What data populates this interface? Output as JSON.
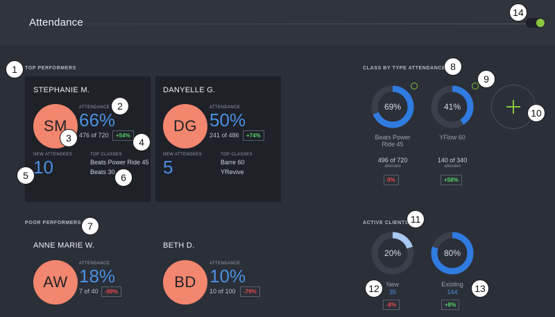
{
  "header": {
    "title": "Attendance"
  },
  "toggle": {
    "state": "on",
    "color": "#8cc63f"
  },
  "markers": [
    "1",
    "2",
    "3",
    "4",
    "5",
    "6",
    "7",
    "8",
    "9",
    "10",
    "11",
    "12",
    "13",
    "14"
  ],
  "top_performers": {
    "label": "TOP PERFORMERS",
    "cards": [
      {
        "name": "STEPHANIE M.",
        "initials": "SM",
        "attendance_label": "ATTENDANCE",
        "percent": "66%",
        "fraction": "476 of 720",
        "change": "+54%",
        "new_label": "NEW ATTENDEES",
        "new_count": "10",
        "classes_label": "TOP CLASSES",
        "classes": [
          "Beats Power Ride 45",
          "Beats 30"
        ]
      },
      {
        "name": "DANYELLE G.",
        "initials": "DG",
        "attendance_label": "ATTENDANCE",
        "percent": "50%",
        "fraction": "241 of 486",
        "change": "+74%",
        "new_label": "NEW ATTENDEES",
        "new_count": "5",
        "classes_label": "TOP CLASSES",
        "classes": [
          "Barre 60",
          "YRevive"
        ]
      }
    ]
  },
  "poor_performers": {
    "label": "POOR PERFORMERS",
    "cards": [
      {
        "name": "ANNE MARIE W.",
        "initials": "AW",
        "attendance_label": "ATTENDANCE",
        "percent": "18%",
        "fraction": "7 of 40",
        "change": "-99%"
      },
      {
        "name": "BETH D.",
        "initials": "BD",
        "attendance_label": "ATTENDANCE",
        "percent": "10%",
        "fraction": "10 of 100",
        "change": "-79%"
      }
    ]
  },
  "class_by_type": {
    "label": "CLASS BY TYPE ATTENDANCE",
    "items": [
      {
        "percent_label": "69%",
        "percent": 69,
        "name": "Beats Power Ride 45",
        "stat": "496 of 720",
        "sub": "attended",
        "change": "0%",
        "change_type": "neg"
      },
      {
        "percent_label": "41%",
        "percent": 41,
        "name": "YFlow 60",
        "stat": "140 of 340",
        "sub": "attended",
        "change": "+58%",
        "change_type": "pos"
      }
    ],
    "add_icon": "plus-icon"
  },
  "active_clients": {
    "label": "ACTIVE CLIENTS",
    "items": [
      {
        "percent_label": "20%",
        "percent": 20,
        "name": "New",
        "count": "35",
        "change": "-8%",
        "change_type": "neg"
      },
      {
        "percent_label": "80%",
        "percent": 80,
        "name": "Existing",
        "count": "144",
        "change": "+8%",
        "change_type": "pos"
      }
    ]
  },
  "colors": {
    "accent": "#4a90e2",
    "avatar": "#f3866e",
    "positive": "#56d66a",
    "negative": "#ee4b4b",
    "green": "#8cc63f",
    "donut_track": "#3a3f4a"
  }
}
